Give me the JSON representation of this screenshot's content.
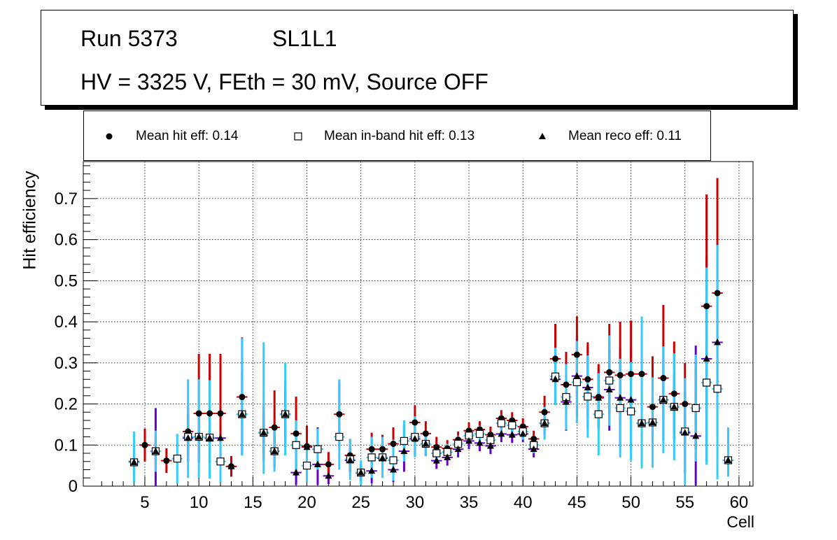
{
  "header": {
    "run": "Run 5373",
    "layer": "SL1L1",
    "conditions": "HV = 3325 V, FEth = 30 mV, Source OFF"
  },
  "legend": [
    {
      "label": "Mean hit  eff: 0.14",
      "marker": "filled-circle"
    },
    {
      "label": "Mean in-band hit eff: 0.13",
      "marker": "open-square"
    },
    {
      "label": "Mean reco eff: 0.11",
      "marker": "filled-triangle"
    }
  ],
  "colors": {
    "hit_error": "#cc0000",
    "inband_error": "#33ccff",
    "reco_error": "#6600cc",
    "marker": "#000000"
  },
  "chart_data": {
    "type": "scatter",
    "xlabel": "Cell",
    "ylabel": "Hit efficiency",
    "xlim": [
      -0.7,
      61.3
    ],
    "ylim": [
      0,
      0.79
    ],
    "xticks": [
      5,
      10,
      15,
      20,
      25,
      30,
      35,
      40,
      45,
      50,
      55,
      60
    ],
    "yticks": [
      0,
      0.1,
      0.2,
      0.3,
      0.4,
      0.5,
      0.6,
      0.7
    ],
    "grid": true,
    "series": [
      {
        "name": "hit",
        "points": [
          [
            4,
            0.06
          ],
          [
            5,
            0.1
          ],
          [
            6,
            0.085
          ],
          [
            7,
            0.062
          ],
          [
            9,
            0.133
          ],
          [
            10,
            0.177
          ],
          [
            11,
            0.177
          ],
          [
            12,
            0.177
          ],
          [
            13,
            0.048
          ],
          [
            14,
            0.217
          ],
          [
            16,
            0.13
          ],
          [
            17,
            0.143
          ],
          [
            18,
            0.175
          ],
          [
            19,
            0.128
          ],
          [
            20,
            0.097
          ],
          [
            21,
            0.09
          ],
          [
            22,
            0.053
          ],
          [
            23,
            0.175
          ],
          [
            24,
            0.075
          ],
          [
            25,
            0.032
          ],
          [
            26,
            0.09
          ],
          [
            27,
            0.09
          ],
          [
            28,
            0.103
          ],
          [
            29,
            0.11
          ],
          [
            30,
            0.155
          ],
          [
            31,
            0.128
          ],
          [
            32,
            0.095
          ],
          [
            33,
            0.092
          ],
          [
            34,
            0.113
          ],
          [
            35,
            0.135
          ],
          [
            36,
            0.138
          ],
          [
            37,
            0.125
          ],
          [
            38,
            0.165
          ],
          [
            39,
            0.16
          ],
          [
            40,
            0.145
          ],
          [
            41,
            0.115
          ],
          [
            42,
            0.18
          ],
          [
            43,
            0.31
          ],
          [
            44,
            0.247
          ],
          [
            45,
            0.32
          ],
          [
            46,
            0.26
          ],
          [
            47,
            0.217
          ],
          [
            48,
            0.277
          ],
          [
            49,
            0.27
          ],
          [
            50,
            0.273
          ],
          [
            51,
            0.273
          ],
          [
            52,
            0.193
          ],
          [
            53,
            0.263
          ],
          [
            54,
            0.225
          ],
          [
            55,
            0.2
          ],
          [
            56,
            0.19
          ],
          [
            57,
            0.438
          ],
          [
            58,
            0.47
          ],
          [
            59,
            0.063
          ]
        ],
        "errors": [
          [
            0.03,
            0.03
          ],
          [
            0.04,
            0.04
          ],
          [
            0.04,
            0.04
          ],
          [
            0.03,
            0.03
          ],
          [
            0.06,
            0.06
          ],
          [
            0.12,
            0.145
          ],
          [
            0.12,
            0.145
          ],
          [
            0.12,
            0.145
          ],
          [
            0.025,
            0.025
          ],
          [
            0.14,
            0.145
          ],
          [
            0.07,
            0.07
          ],
          [
            0.06,
            0.09
          ],
          [
            0.08,
            0.08
          ],
          [
            0.08,
            0.09
          ],
          [
            0.05,
            0.05
          ],
          [
            0.04,
            0.04
          ],
          [
            0.03,
            0.03
          ],
          [
            0.08,
            0.08
          ],
          [
            0.04,
            0.04
          ],
          [
            0.02,
            0.02
          ],
          [
            0.04,
            0.04
          ],
          [
            0.04,
            0.035
          ],
          [
            0.04,
            0.04
          ],
          [
            0.04,
            0.04
          ],
          [
            0.05,
            0.042
          ],
          [
            0.03,
            0.03
          ],
          [
            0.025,
            0.025
          ],
          [
            0.02,
            0.02
          ],
          [
            0.02,
            0.02
          ],
          [
            0.02,
            0.02
          ],
          [
            0.02,
            0.02
          ],
          [
            0.02,
            0.02
          ],
          [
            0.02,
            0.02
          ],
          [
            0.02,
            0.02
          ],
          [
            0.02,
            0.02
          ],
          [
            0.02,
            0.02
          ],
          [
            0.05,
            0.04
          ],
          [
            0.08,
            0.085
          ],
          [
            0.08,
            0.08
          ],
          [
            0.1,
            0.093
          ],
          [
            0.09,
            0.09
          ],
          [
            0.08,
            0.08
          ],
          [
            0.1,
            0.118
          ],
          [
            0.1,
            0.13
          ],
          [
            0.1,
            0.13
          ],
          [
            0.1,
            0.1
          ],
          [
            0.08,
            0.123
          ],
          [
            0.1,
            0.178
          ],
          [
            0.1,
            0.127
          ],
          [
            0.1,
            0.1
          ],
          [
            0.1,
            0.1
          ],
          [
            0.25,
            0.272
          ],
          [
            0.25,
            0.28
          ],
          [
            0.04,
            0.04
          ]
        ]
      },
      {
        "name": "inband",
        "points": [
          [
            4,
            0.058
          ],
          [
            6,
            0.085
          ],
          [
            8,
            0.067
          ],
          [
            9,
            0.12
          ],
          [
            10,
            0.12
          ],
          [
            11,
            0.118
          ],
          [
            12,
            0.06
          ],
          [
            14,
            0.175
          ],
          [
            16,
            0.13
          ],
          [
            17,
            0.085
          ],
          [
            18,
            0.175
          ],
          [
            19,
            0.1
          ],
          [
            20,
            0.05
          ],
          [
            21,
            0.09
          ],
          [
            23,
            0.12
          ],
          [
            24,
            0.065
          ],
          [
            25,
            0.033
          ],
          [
            26,
            0.07
          ],
          [
            27,
            0.07
          ],
          [
            28,
            0.063
          ],
          [
            29,
            0.11
          ],
          [
            30,
            0.12
          ],
          [
            31,
            0.103
          ],
          [
            32,
            0.08
          ],
          [
            33,
            0.083
          ],
          [
            34,
            0.103
          ],
          [
            35,
            0.123
          ],
          [
            36,
            0.127
          ],
          [
            37,
            0.112
          ],
          [
            38,
            0.153
          ],
          [
            39,
            0.148
          ],
          [
            40,
            0.133
          ],
          [
            41,
            0.1
          ],
          [
            42,
            0.153
          ],
          [
            43,
            0.267
          ],
          [
            44,
            0.217
          ],
          [
            45,
            0.253
          ],
          [
            46,
            0.218
          ],
          [
            47,
            0.175
          ],
          [
            48,
            0.257
          ],
          [
            49,
            0.19
          ],
          [
            50,
            0.182
          ],
          [
            51,
            0.153
          ],
          [
            52,
            0.155
          ],
          [
            53,
            0.21
          ],
          [
            54,
            0.193
          ],
          [
            55,
            0.133
          ],
          [
            56,
            0.19
          ],
          [
            57,
            0.252
          ],
          [
            58,
            0.237
          ],
          [
            59,
            0.063
          ]
        ],
        "errors": [
          [
            0.05,
            0.075
          ],
          [
            0.05,
            0.05
          ],
          [
            0.06,
            0.06
          ],
          [
            0.1,
            0.14
          ],
          [
            0.1,
            0.14
          ],
          [
            0.1,
            0.14
          ],
          [
            0.05,
            0.05
          ],
          [
            0.1,
            0.185
          ],
          [
            0.1,
            0.22
          ],
          [
            0.05,
            0.05
          ],
          [
            0.1,
            0.125
          ],
          [
            0.06,
            0.06
          ],
          [
            0.04,
            0.04
          ],
          [
            0.05,
            0.05
          ],
          [
            0.08,
            0.14
          ],
          [
            0.05,
            0.05
          ],
          [
            0.03,
            0.03
          ],
          [
            0.05,
            0.05
          ],
          [
            0.05,
            0.05
          ],
          [
            0.05,
            0.05
          ],
          [
            0.05,
            0.05
          ],
          [
            0.05,
            0.05
          ],
          [
            0.03,
            0.03
          ],
          [
            0.02,
            0.02
          ],
          [
            0.02,
            0.02
          ],
          [
            0.02,
            0.02
          ],
          [
            0.02,
            0.02
          ],
          [
            0.02,
            0.02
          ],
          [
            0.02,
            0.02
          ],
          [
            0.02,
            0.02
          ],
          [
            0.02,
            0.02
          ],
          [
            0.02,
            0.02
          ],
          [
            0.02,
            0.02
          ],
          [
            0.04,
            0.04
          ],
          [
            0.07,
            0.07
          ],
          [
            0.08,
            0.08
          ],
          [
            0.1,
            0.1
          ],
          [
            0.1,
            0.1
          ],
          [
            0.1,
            0.1
          ],
          [
            0.11,
            0.11
          ],
          [
            0.12,
            0.12
          ],
          [
            0.12,
            0.12
          ],
          [
            0.11,
            0.26
          ],
          [
            0.11,
            0.11
          ],
          [
            0.13,
            0.13
          ],
          [
            0.13,
            0.13
          ],
          [
            0.13,
            0.13
          ],
          [
            0.13,
            0.13
          ],
          [
            0.2,
            0.28
          ],
          [
            0.22,
            0.35
          ],
          [
            0.04,
            0.08
          ]
        ]
      },
      {
        "name": "reco",
        "points": [
          [
            4,
            0.058
          ],
          [
            6,
            0.085
          ],
          [
            9,
            0.117
          ],
          [
            10,
            0.12
          ],
          [
            11,
            0.117
          ],
          [
            12,
            0.117
          ],
          [
            13,
            0.048
          ],
          [
            14,
            0.175
          ],
          [
            16,
            0.13
          ],
          [
            17,
            0.085
          ],
          [
            18,
            0.175
          ],
          [
            19,
            0.033
          ],
          [
            20,
            0.095
          ],
          [
            21,
            0.053
          ],
          [
            22,
            0.025
          ],
          [
            24,
            0.063
          ],
          [
            25,
            0.033
          ],
          [
            26,
            0.037
          ],
          [
            27,
            0.068
          ],
          [
            28,
            0.04
          ],
          [
            29,
            0.085
          ],
          [
            30,
            0.115
          ],
          [
            31,
            0.103
          ],
          [
            32,
            0.062
          ],
          [
            33,
            0.07
          ],
          [
            34,
            0.09
          ],
          [
            35,
            0.11
          ],
          [
            36,
            0.105
          ],
          [
            37,
            0.098
          ],
          [
            38,
            0.127
          ],
          [
            39,
            0.125
          ],
          [
            40,
            0.127
          ],
          [
            41,
            0.09
          ],
          [
            42,
            0.153
          ],
          [
            43,
            0.26
          ],
          [
            44,
            0.205
          ],
          [
            45,
            0.268
          ],
          [
            46,
            0.24
          ],
          [
            47,
            0.215
          ],
          [
            48,
            0.235
          ],
          [
            49,
            0.215
          ],
          [
            50,
            0.21
          ],
          [
            51,
            0.153
          ],
          [
            52,
            0.155
          ],
          [
            53,
            0.21
          ],
          [
            54,
            0.193
          ],
          [
            55,
            0.13
          ],
          [
            56,
            0.122
          ],
          [
            57,
            0.31
          ],
          [
            58,
            0.35
          ],
          [
            59,
            0.063
          ]
        ],
        "errors": [
          [
            0.03,
            0.03
          ],
          [
            0.085,
            0.105
          ],
          [
            0.06,
            0.06
          ],
          [
            0.06,
            0.06
          ],
          [
            0.06,
            0.06
          ],
          [
            0.06,
            0.06
          ],
          [
            0.025,
            0.025
          ],
          [
            0.1,
            0.1
          ],
          [
            0.05,
            0.05
          ],
          [
            0.04,
            0.04
          ],
          [
            0.06,
            0.06
          ],
          [
            0.03,
            0.03
          ],
          [
            0.05,
            0.05
          ],
          [
            0.05,
            0.09
          ],
          [
            0.02,
            0.02
          ],
          [
            0.03,
            0.03
          ],
          [
            0.02,
            0.02
          ],
          [
            0.03,
            0.03
          ],
          [
            0.03,
            0.03
          ],
          [
            0.03,
            0.03
          ],
          [
            0.05,
            0.06
          ],
          [
            0.04,
            0.04
          ],
          [
            0.03,
            0.03
          ],
          [
            0.02,
            0.02
          ],
          [
            0.02,
            0.02
          ],
          [
            0.02,
            0.02
          ],
          [
            0.02,
            0.02
          ],
          [
            0.02,
            0.02
          ],
          [
            0.02,
            0.02
          ],
          [
            0.02,
            0.02
          ],
          [
            0.02,
            0.02
          ],
          [
            0.02,
            0.02
          ],
          [
            0.02,
            0.02
          ],
          [
            0.03,
            0.03
          ],
          [
            0.06,
            0.06
          ],
          [
            0.07,
            0.07
          ],
          [
            0.1,
            0.1
          ],
          [
            0.1,
            0.1
          ],
          [
            0.07,
            0.07
          ],
          [
            0.1,
            0.1
          ],
          [
            0.12,
            0.12
          ],
          [
            0.12,
            0.12
          ],
          [
            0.1,
            0.1
          ],
          [
            0.06,
            0.06
          ],
          [
            0.1,
            0.1
          ],
          [
            0.08,
            0.08
          ],
          [
            0.1,
            0.1
          ],
          [
            0.12,
            0.22
          ],
          [
            0.25,
            0.25
          ],
          [
            0.23,
            0.24
          ],
          [
            0.04,
            0.04
          ]
        ]
      }
    ]
  }
}
